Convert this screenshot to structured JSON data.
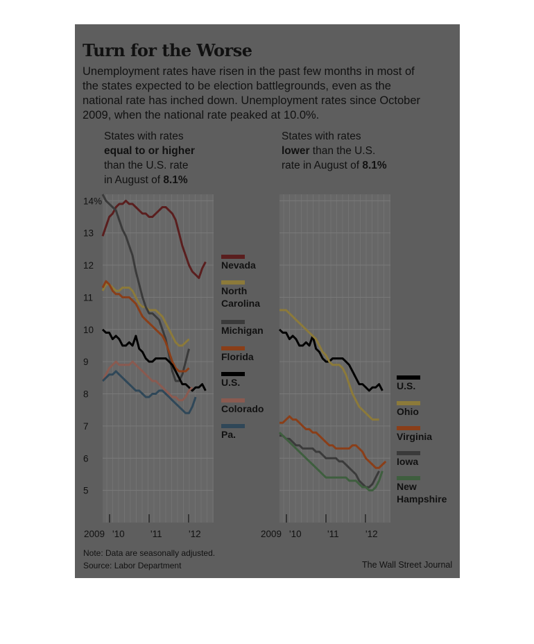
{
  "title": "Turn for the Worse",
  "description": "Unemployment rates have risen in the past few months in most of the states expected to be election battlegrounds, even as the national rate has inched down. Unemployment rates since October 2009, when the national rate peaked at 10.0%.",
  "left_panel": {
    "header_line1": "States with rates",
    "header_line2": "equal to or higher",
    "header_line3": "than the U.S. rate",
    "header_line4_pre": "in August of ",
    "header_line4_bold": "8.1%"
  },
  "right_panel": {
    "header_line1": "States with rates",
    "header_line2_bold": "lower",
    "header_line2_rest": " than the U.S.",
    "header_line3_pre": "rate in August of ",
    "header_line3_bold": "8.1%"
  },
  "note": "Note: Data are seasonally adjusted.",
  "source": "Source: Labor Department",
  "credit": "The Wall Street Journal",
  "colors": {
    "background_panel": "#5e5e5e",
    "nevada": "#5a1e1e",
    "north_carolina": "#8c7a3a",
    "michigan": "#3a3a3a",
    "florida": "#8a3e18",
    "us": "#000000",
    "colorado": "#8a5a50",
    "pa": "#2f4758",
    "ohio": "#8c7a3a",
    "virginia": "#8a3e18",
    "iowa": "#3a3a3a",
    "new_hampshire": "#3e5e3e"
  },
  "chart_data": [
    {
      "type": "line",
      "title": "States with rates equal to or higher than the U.S. rate in August of 8.1%",
      "x_start": "2009-10",
      "x_end": "2012-08",
      "x_tick_labels": [
        "2009",
        "'10",
        "'11",
        "'12"
      ],
      "y_tick_labels": [
        "14%",
        "13",
        "12",
        "11",
        "10",
        "9",
        "8",
        "7",
        "6",
        "5"
      ],
      "ylim": [
        4,
        14.2
      ],
      "series": [
        {
          "name": "Nevada",
          "color": "#5a1e1e",
          "values": [
            12.9,
            13.2,
            13.5,
            13.6,
            13.8,
            13.9,
            13.9,
            14.0,
            13.9,
            13.9,
            13.8,
            13.7,
            13.6,
            13.6,
            13.5,
            13.5,
            13.6,
            13.7,
            13.8,
            13.8,
            13.7,
            13.6,
            13.4,
            13.0,
            12.6,
            12.3,
            12.0,
            11.8,
            11.7,
            11.6,
            11.9,
            12.1
          ]
        },
        {
          "name": "North Carolina",
          "color": "#8c7a3a",
          "values": [
            11.2,
            11.4,
            11.4,
            11.3,
            11.2,
            11.2,
            11.3,
            11.3,
            11.3,
            11.2,
            11.0,
            10.8,
            10.7,
            10.7,
            10.6,
            10.6,
            10.6,
            10.5,
            10.4,
            10.2,
            10.0,
            9.8,
            9.6,
            9.5,
            9.5,
            9.6,
            9.7
          ]
        },
        {
          "name": "Michigan",
          "color": "#3a3a3a",
          "values": [
            14.2,
            14.0,
            13.9,
            13.8,
            13.7,
            13.4,
            13.1,
            12.9,
            12.6,
            12.3,
            11.8,
            11.4,
            11.0,
            10.7,
            10.5,
            10.5,
            10.4,
            10.3,
            10.0,
            9.7,
            9.2,
            8.7,
            8.4,
            8.4,
            8.6,
            9.0,
            9.4
          ]
        },
        {
          "name": "Florida",
          "color": "#8a3e18",
          "values": [
            11.3,
            11.5,
            11.4,
            11.2,
            11.1,
            11.1,
            11.0,
            11.0,
            11.0,
            10.9,
            10.8,
            10.6,
            10.4,
            10.3,
            10.2,
            10.1,
            10.0,
            9.9,
            9.8,
            9.6,
            9.3,
            9.0,
            8.8,
            8.7,
            8.7,
            8.7,
            8.8
          ]
        },
        {
          "name": "U.S.",
          "color": "#000000",
          "values": [
            10.0,
            9.9,
            9.9,
            9.7,
            9.8,
            9.7,
            9.5,
            9.5,
            9.6,
            9.5,
            9.8,
            9.4,
            9.3,
            9.1,
            9.0,
            9.0,
            9.1,
            9.1,
            9.1,
            9.1,
            9.0,
            8.9,
            8.7,
            8.5,
            8.3,
            8.3,
            8.2,
            8.1,
            8.2,
            8.2,
            8.3,
            8.1
          ]
        },
        {
          "name": "Colorado",
          "color": "#8a5a50",
          "values": [
            8.4,
            8.6,
            8.8,
            8.9,
            9.0,
            8.9,
            8.9,
            8.9,
            8.9,
            9.0,
            8.9,
            8.8,
            8.7,
            8.6,
            8.5,
            8.4,
            8.4,
            8.3,
            8.2,
            8.1,
            8.0,
            7.9,
            7.9,
            7.8,
            7.8,
            7.9,
            8.1,
            8.2
          ]
        },
        {
          "name": "Pa.",
          "color": "#2f4758",
          "values": [
            8.4,
            8.5,
            8.6,
            8.6,
            8.7,
            8.6,
            8.5,
            8.4,
            8.3,
            8.2,
            8.1,
            8.1,
            8.0,
            7.9,
            7.9,
            8.0,
            8.0,
            8.1,
            8.1,
            8.0,
            7.9,
            7.8,
            7.7,
            7.6,
            7.5,
            7.4,
            7.4,
            7.6,
            7.9
          ]
        }
      ]
    },
    {
      "type": "line",
      "title": "States with rates lower than the U.S. rate in August of 8.1%",
      "x_start": "2009-10",
      "x_end": "2012-08",
      "x_tick_labels": [
        "2009",
        "'10",
        "'11",
        "'12"
      ],
      "ylim": [
        4,
        14.2
      ],
      "series": [
        {
          "name": "U.S.",
          "color": "#000000",
          "values": [
            10.0,
            9.9,
            9.9,
            9.7,
            9.8,
            9.7,
            9.5,
            9.5,
            9.6,
            9.5,
            9.8,
            9.4,
            9.3,
            9.1,
            9.0,
            9.0,
            9.1,
            9.1,
            9.1,
            9.1,
            9.0,
            8.9,
            8.7,
            8.5,
            8.3,
            8.3,
            8.2,
            8.1,
            8.2,
            8.2,
            8.3,
            8.1
          ]
        },
        {
          "name": "Ohio",
          "color": "#8c7a3a",
          "values": [
            10.6,
            10.6,
            10.6,
            10.5,
            10.4,
            10.3,
            10.2,
            10.1,
            10.0,
            9.9,
            9.8,
            9.7,
            9.5,
            9.3,
            9.2,
            9.0,
            8.9,
            8.9,
            8.9,
            8.8,
            8.6,
            8.3,
            8.0,
            7.8,
            7.6,
            7.5,
            7.4,
            7.3,
            7.2,
            7.2,
            7.2
          ]
        },
        {
          "name": "Virginia",
          "color": "#8a3e18",
          "values": [
            7.1,
            7.1,
            7.2,
            7.3,
            7.2,
            7.2,
            7.1,
            7.0,
            6.9,
            6.9,
            6.8,
            6.8,
            6.7,
            6.6,
            6.5,
            6.4,
            6.4,
            6.3,
            6.3,
            6.3,
            6.3,
            6.3,
            6.4,
            6.4,
            6.3,
            6.2,
            6.0,
            5.9,
            5.8,
            5.7,
            5.7,
            5.8,
            5.9
          ]
        },
        {
          "name": "Iowa",
          "color": "#3a3a3a",
          "values": [
            6.7,
            6.7,
            6.6,
            6.6,
            6.5,
            6.4,
            6.4,
            6.3,
            6.3,
            6.3,
            6.3,
            6.2,
            6.2,
            6.1,
            6.0,
            6.0,
            6.0,
            6.0,
            5.9,
            5.9,
            5.8,
            5.7,
            5.6,
            5.5,
            5.3,
            5.2,
            5.1,
            5.1,
            5.2,
            5.4,
            5.6
          ]
        },
        {
          "name": "New Hampshire",
          "color": "#3e5e3e",
          "values": [
            6.8,
            6.7,
            6.6,
            6.5,
            6.4,
            6.3,
            6.2,
            6.1,
            6.0,
            5.9,
            5.8,
            5.7,
            5.6,
            5.5,
            5.4,
            5.4,
            5.4,
            5.4,
            5.4,
            5.4,
            5.4,
            5.3,
            5.3,
            5.3,
            5.2,
            5.1,
            5.1,
            5.0,
            5.0,
            5.1,
            5.3,
            5.6
          ]
        }
      ]
    }
  ]
}
